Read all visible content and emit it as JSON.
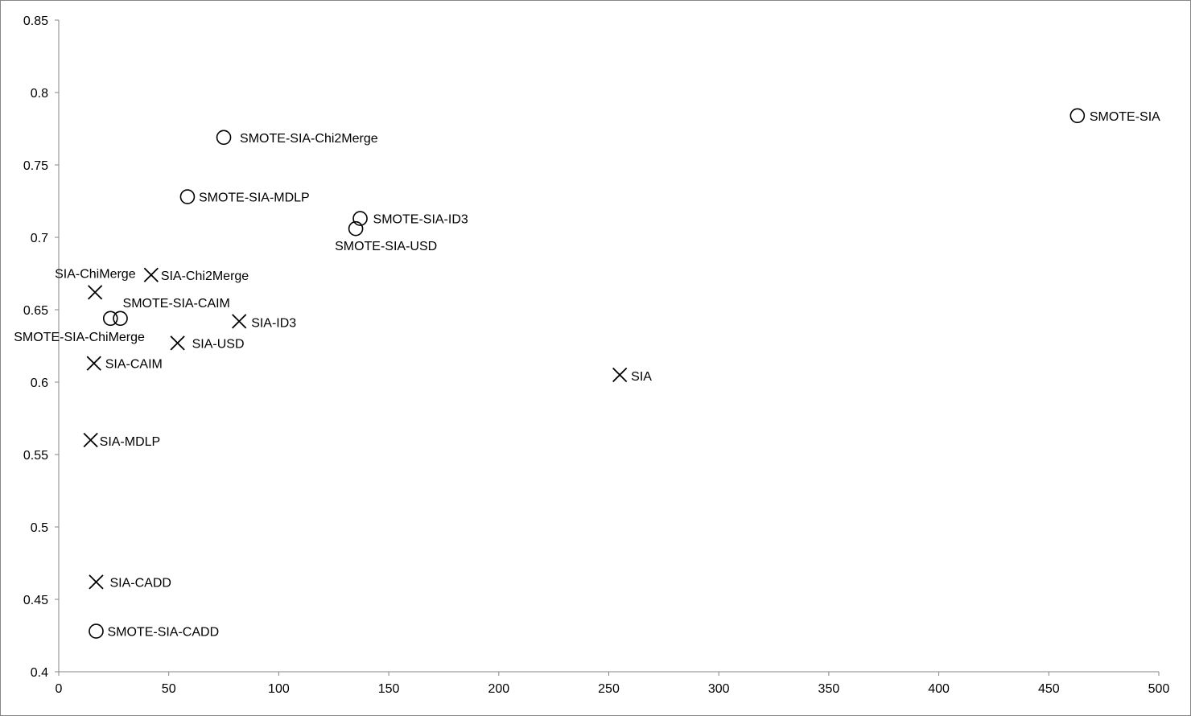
{
  "chart_data": {
    "type": "scatter",
    "title": "",
    "xlabel": "",
    "ylabel": "",
    "xlim": [
      0,
      500
    ],
    "ylim": [
      0.4,
      0.85
    ],
    "x_ticks": [
      "0",
      "50",
      "100",
      "150",
      "200",
      "250",
      "300",
      "350",
      "400",
      "450",
      "500"
    ],
    "y_ticks": [
      "0.4",
      "0.45",
      "0.5",
      "0.55",
      "0.6",
      "0.65",
      "0.7",
      "0.75",
      "0.8",
      "0.85"
    ],
    "grid": false,
    "legend": "none",
    "marker_color": "#000000",
    "points": [
      {
        "label": "SMOTE-SIA",
        "x": 463,
        "y": 0.784,
        "marker": "circle"
      },
      {
        "label": "SMOTE-SIA-Chi2Merge",
        "x": 75,
        "y": 0.769,
        "marker": "circle"
      },
      {
        "label": "SMOTE-SIA-MDLP",
        "x": 58.5,
        "y": 0.728,
        "marker": "circle"
      },
      {
        "label": "SMOTE-SIA-ID3",
        "x": 137,
        "y": 0.713,
        "marker": "circle"
      },
      {
        "label": "SMOTE-SIA-USD",
        "x": 135,
        "y": 0.706,
        "marker": "circle"
      },
      {
        "label": "SIA-Chi2Merge",
        "x": 42,
        "y": 0.674,
        "marker": "x"
      },
      {
        "label": "SIA-ChiMerge",
        "x": 16.5,
        "y": 0.662,
        "marker": "x"
      },
      {
        "label": "SMOTE-SIA-CAIM",
        "x": 28,
        "y": 0.644,
        "marker": "circle"
      },
      {
        "label": "SMOTE-SIA-ChiMerge",
        "x": 23.5,
        "y": 0.644,
        "marker": "circle"
      },
      {
        "label": "SIA-ID3",
        "x": 82,
        "y": 0.642,
        "marker": "x"
      },
      {
        "label": "SIA-USD",
        "x": 54,
        "y": 0.627,
        "marker": "x"
      },
      {
        "label": "SIA-CAIM",
        "x": 16,
        "y": 0.613,
        "marker": "x"
      },
      {
        "label": "SIA",
        "x": 255,
        "y": 0.605,
        "marker": "x"
      },
      {
        "label": "SIA-MDLP",
        "x": 14.5,
        "y": 0.56,
        "marker": "x"
      },
      {
        "label": "SIA-CADD",
        "x": 17,
        "y": 0.462,
        "marker": "x"
      },
      {
        "label": "SMOTE-SIA-CADD",
        "x": 17,
        "y": 0.428,
        "marker": "circle"
      }
    ]
  }
}
